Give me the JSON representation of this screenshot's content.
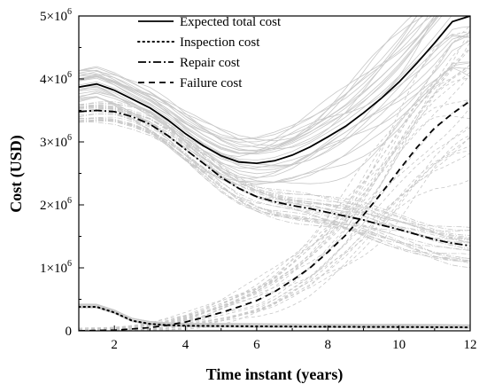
{
  "chart_data": {
    "type": "line",
    "xlabel": "Time instant (years)",
    "ylabel": "Cost (USD)",
    "xlim": [
      1,
      12
    ],
    "ylim": [
      0,
      5000000
    ],
    "x_ticks": [
      2,
      4,
      6,
      8,
      10,
      12
    ],
    "x_tick_labels": [
      "2",
      "4",
      "6",
      "8",
      "10",
      "12"
    ],
    "y_ticks": [
      0,
      1000000,
      2000000,
      3000000,
      4000000,
      5000000
    ],
    "y_tick_labels": [
      {
        "base": "0",
        "exp": ""
      },
      {
        "base": "1×10",
        "exp": "6"
      },
      {
        "base": "2×10",
        "exp": "6"
      },
      {
        "base": "3×10",
        "exp": "6"
      },
      {
        "base": "4×10",
        "exp": "6"
      },
      {
        "base": "5×10",
        "exp": "6"
      }
    ],
    "legend_position": "top-left",
    "series": [
      {
        "name": "Expected total cost",
        "style": "solid",
        "x": [
          1,
          1.5,
          2,
          2.5,
          3,
          3.5,
          4,
          4.5,
          5,
          5.5,
          6,
          6.5,
          7,
          7.5,
          8,
          8.5,
          9,
          9.5,
          10,
          10.5,
          11,
          11.5,
          12
        ],
        "y": [
          3870000,
          3920000,
          3820000,
          3680000,
          3540000,
          3350000,
          3130000,
          2940000,
          2780000,
          2680000,
          2660000,
          2700000,
          2790000,
          2920000,
          3080000,
          3250000,
          3460000,
          3690000,
          3950000,
          4250000,
          4570000,
          4910000,
          5000000
        ]
      },
      {
        "name": "Inspection cost",
        "style": "dotted",
        "x": [
          1,
          1.5,
          2,
          2.5,
          3,
          3.5,
          4,
          5,
          6,
          7,
          8,
          9,
          10,
          11,
          12
        ],
        "y": [
          380000,
          380000,
          290000,
          160000,
          110000,
          90000,
          80000,
          75000,
          70000,
          68000,
          65000,
          62000,
          60000,
          58000,
          55000
        ]
      },
      {
        "name": "Repair cost",
        "style": "dashdot",
        "x": [
          1,
          1.5,
          2,
          2.5,
          3,
          3.5,
          4,
          4.5,
          5,
          5.5,
          6,
          6.5,
          7,
          7.5,
          8,
          8.5,
          9,
          9.5,
          10,
          10.5,
          11,
          11.5,
          12
        ],
        "y": [
          3480000,
          3500000,
          3480000,
          3400000,
          3280000,
          3100000,
          2880000,
          2660000,
          2440000,
          2260000,
          2130000,
          2050000,
          1990000,
          1940000,
          1880000,
          1820000,
          1760000,
          1680000,
          1610000,
          1530000,
          1450000,
          1390000,
          1350000
        ]
      },
      {
        "name": "Failure cost",
        "style": "dashed",
        "x": [
          1,
          2,
          3,
          3.5,
          4,
          4.5,
          5,
          5.5,
          6,
          6.5,
          7,
          7.5,
          8,
          8.5,
          9,
          9.5,
          10,
          10.5,
          11,
          11.5,
          12
        ],
        "y": [
          0,
          10000,
          50000,
          90000,
          140000,
          210000,
          290000,
          380000,
          480000,
          620000,
          800000,
          1000000,
          1250000,
          1520000,
          1840000,
          2180000,
          2550000,
          2910000,
          3220000,
          3450000,
          3650000
        ]
      }
    ]
  }
}
